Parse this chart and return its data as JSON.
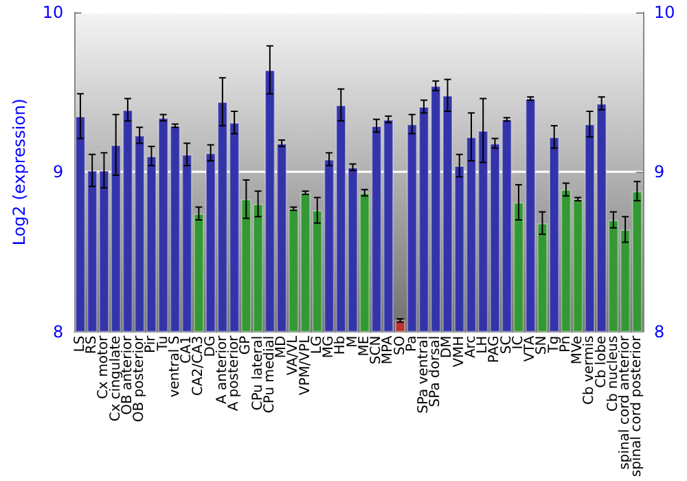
{
  "chart_data": {
    "type": "bar",
    "ylabel": "Log2 (expression)",
    "categories": [
      "LS",
      "RS",
      "Cx motor",
      "Cx cingulate",
      "OB anterior",
      "OB posterior",
      "Pir",
      "Tu",
      "ventral S",
      "CA1",
      "CA2/CA3",
      "DG",
      "A anterior",
      "A posterior",
      "GP",
      "CPu lateral",
      "CPu medial",
      "MD",
      "VA/VL",
      "VPM/VPL",
      "LG",
      "MG",
      "Hb",
      "M",
      "ME",
      "SCN",
      "MPA",
      "SO",
      "Pa",
      "SPa ventral",
      "SPa dorsal",
      "DM",
      "VMH",
      "Arc",
      "LH",
      "PAG",
      "SC",
      "IC",
      "VTA",
      "SN",
      "Tg",
      "Pn",
      "MVe",
      "Cb vermis",
      "Cb lobe",
      "Cb nucleus",
      "spinal cord anterior",
      "spinal cord posterior"
    ],
    "values": [
      9.35,
      9.01,
      9.01,
      9.17,
      9.39,
      9.23,
      9.1,
      9.34,
      9.29,
      9.11,
      8.74,
      9.12,
      9.44,
      9.31,
      8.83,
      8.8,
      9.64,
      9.18,
      8.77,
      8.87,
      8.76,
      9.08,
      9.42,
      9.03,
      8.87,
      9.29,
      9.33,
      8.07,
      9.3,
      9.41,
      9.54,
      9.48,
      9.04,
      9.22,
      9.26,
      9.18,
      9.33,
      8.81,
      9.46,
      8.68,
      9.22,
      8.89,
      8.83,
      9.3,
      9.43,
      8.7,
      8.64,
      8.88
    ],
    "errors": [
      0.14,
      0.1,
      0.11,
      0.19,
      0.07,
      0.05,
      0.06,
      0.02,
      0.01,
      0.07,
      0.04,
      0.05,
      0.15,
      0.07,
      0.12,
      0.08,
      0.15,
      0.02,
      0.01,
      0.01,
      0.08,
      0.04,
      0.1,
      0.02,
      0.02,
      0.04,
      0.02,
      0.01,
      0.06,
      0.04,
      0.03,
      0.1,
      0.07,
      0.15,
      0.2,
      0.03,
      0.01,
      0.11,
      0.01,
      0.07,
      0.07,
      0.04,
      0.01,
      0.08,
      0.04,
      0.05,
      0.08,
      0.06
    ],
    "colors": [
      "#3333aa",
      "#3333aa",
      "#3333aa",
      "#3333aa",
      "#3333aa",
      "#3333aa",
      "#3333aa",
      "#3333aa",
      "#3333aa",
      "#3333aa",
      "#339933",
      "#3333aa",
      "#3333aa",
      "#3333aa",
      "#339933",
      "#339933",
      "#3333aa",
      "#3333aa",
      "#339933",
      "#339933",
      "#339933",
      "#3333aa",
      "#3333aa",
      "#3333aa",
      "#339933",
      "#3333aa",
      "#3333aa",
      "#bb3333",
      "#3333aa",
      "#3333aa",
      "#3333aa",
      "#3333aa",
      "#3333aa",
      "#3333aa",
      "#3333aa",
      "#3333aa",
      "#3333aa",
      "#339933",
      "#3333aa",
      "#339933",
      "#3333aa",
      "#339933",
      "#339933",
      "#3333aa",
      "#3333aa",
      "#339933",
      "#339933",
      "#339933"
    ],
    "ylim": [
      8,
      10
    ],
    "yticks": [
      8,
      9,
      10
    ],
    "y2lim": [
      8,
      10
    ],
    "y2ticks": [
      8,
      9,
      10
    ],
    "grid": "y"
  }
}
